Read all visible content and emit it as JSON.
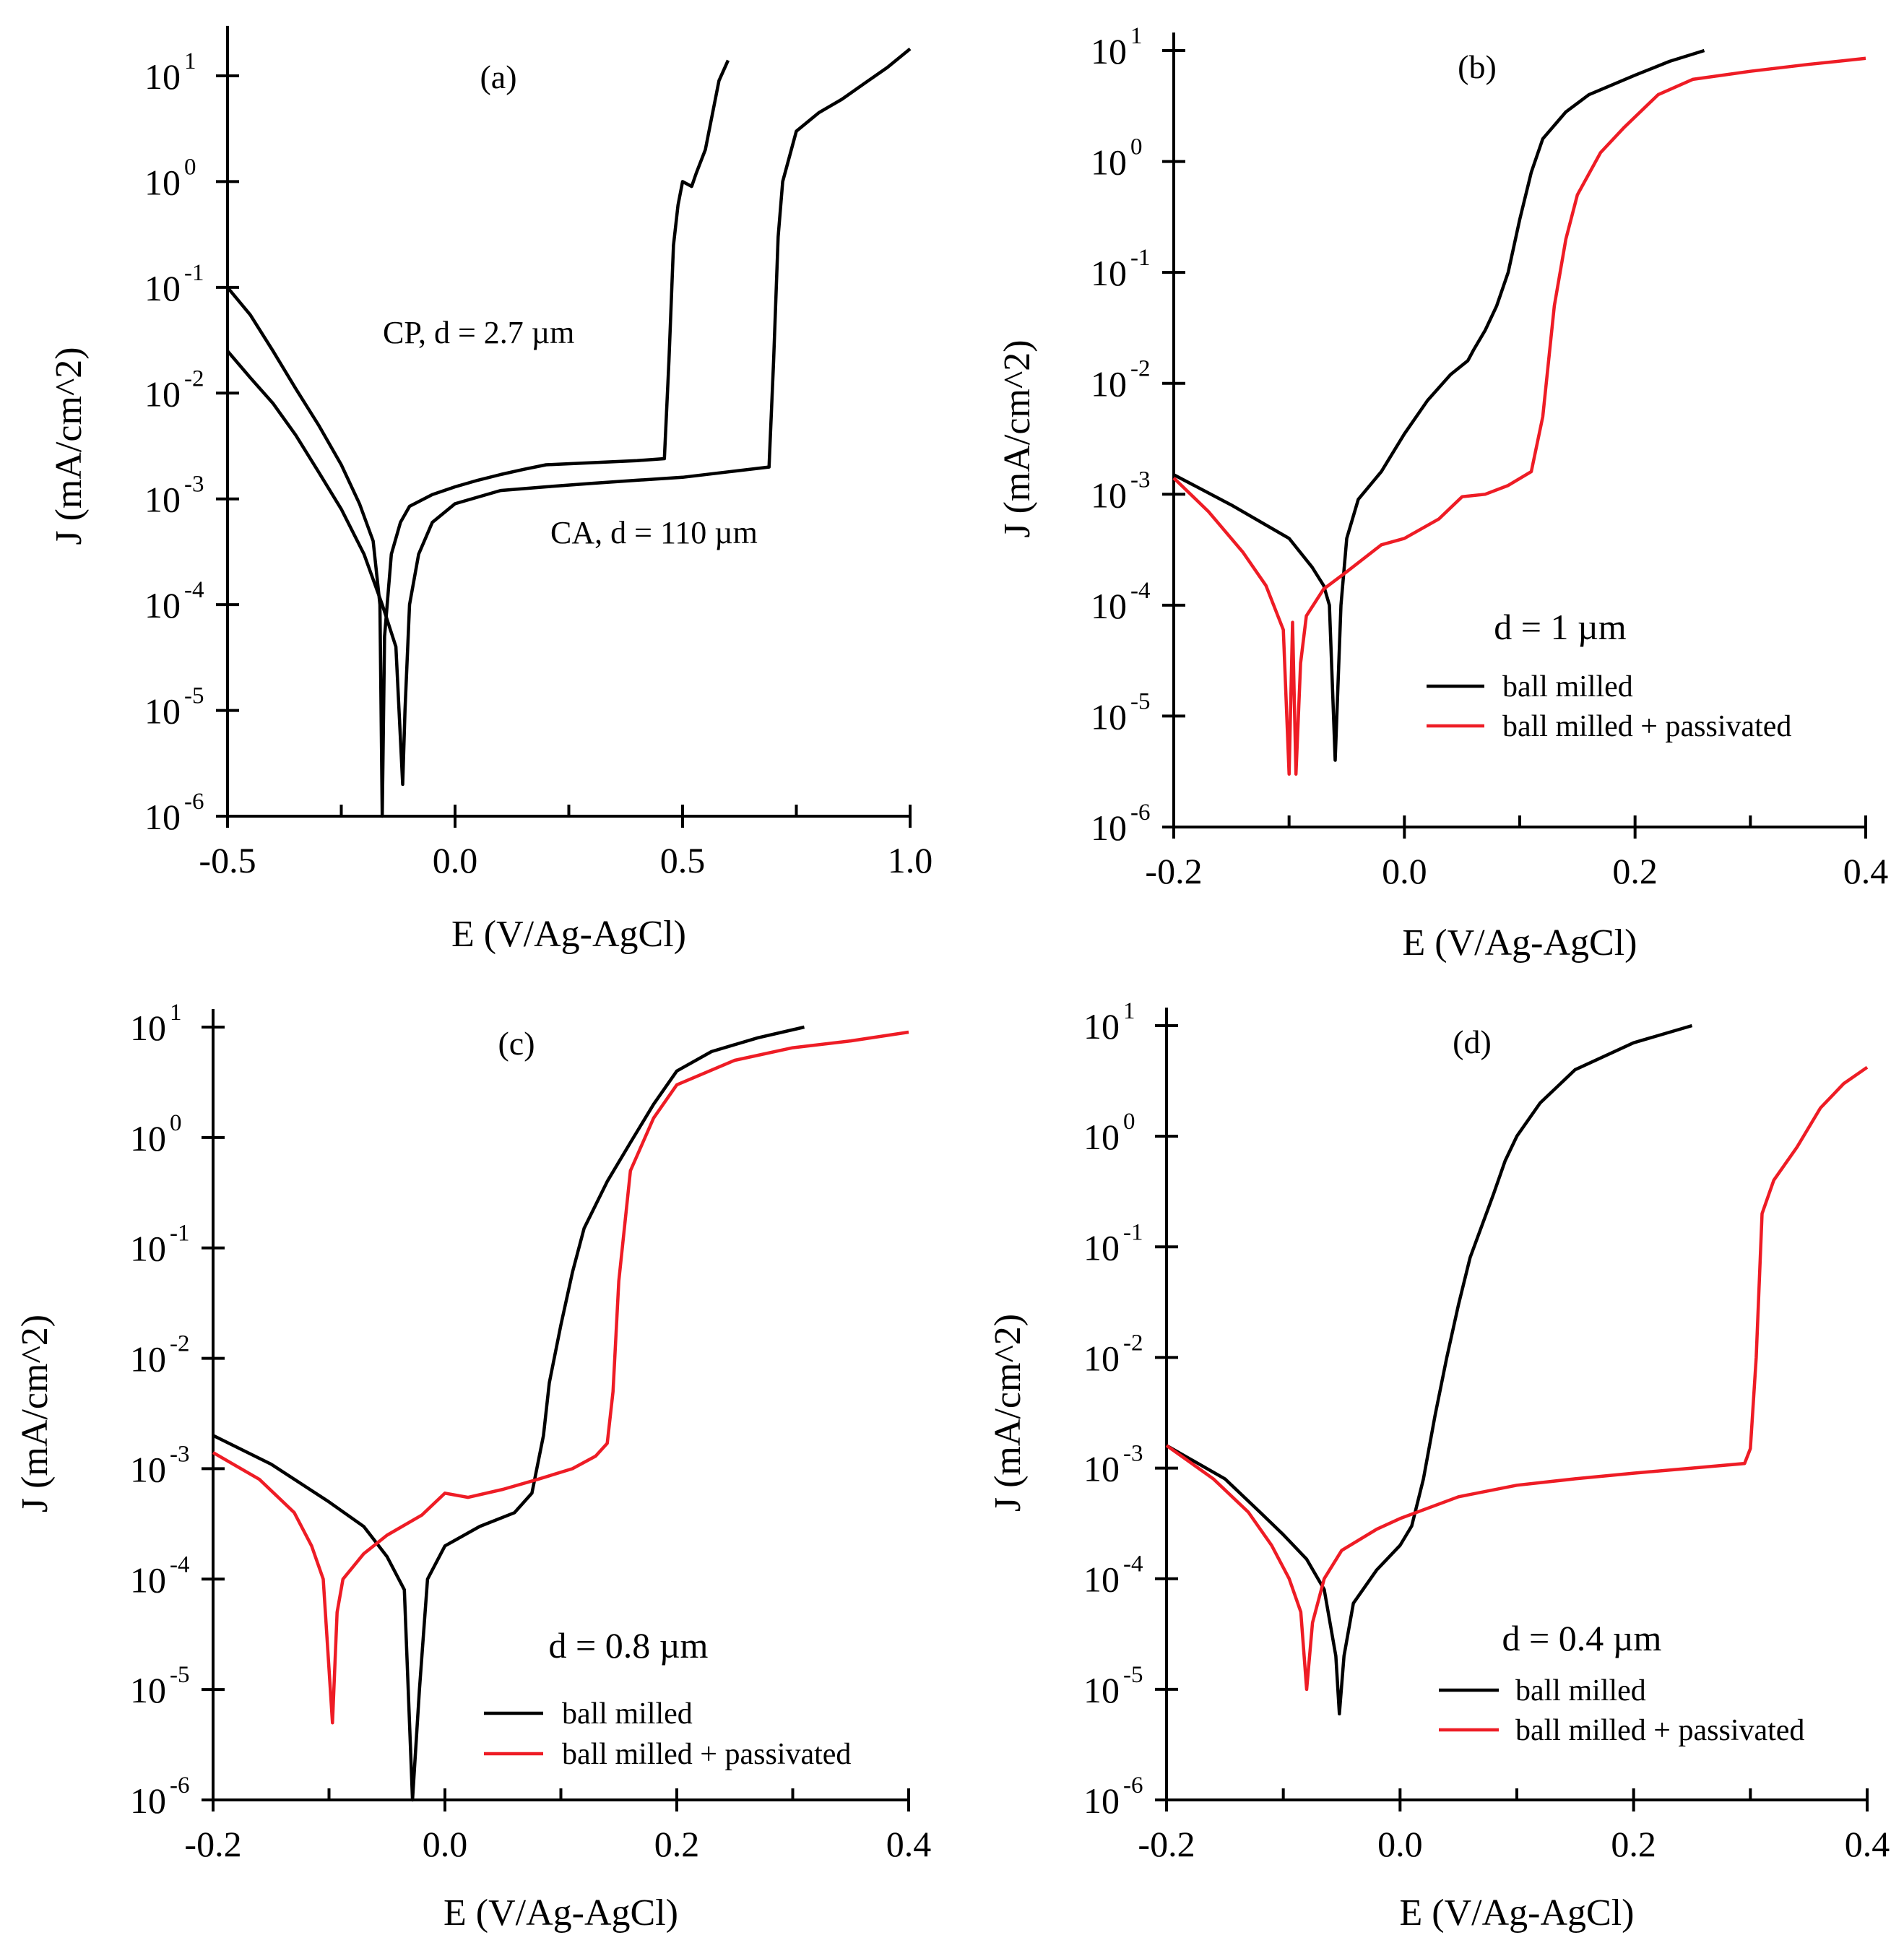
{
  "chart_data": [
    {
      "type": "line",
      "panel": "(a)",
      "xlabel": "E (V/Ag-AgCl)",
      "ylabel": "J (mA/cm^2)",
      "yscale": "log",
      "xlim": [
        -0.5,
        1.0
      ],
      "ylim": [
        1e-06,
        20
      ],
      "x_ticks": [
        -0.5,
        0.0,
        0.5,
        1.0
      ],
      "x_tick_labels": [
        "-0.5",
        "0.0",
        "0.5",
        "1.0"
      ],
      "y_exponents": [
        1,
        0,
        -1,
        -2,
        -3,
        -4,
        -5,
        -6
      ],
      "annotations": [
        "CP, d = 2.7 µm",
        "CA, d = 110 µm"
      ],
      "series": [
        {
          "name": "CP, d = 2.7 µm",
          "color": "#000000",
          "points": [
            [
              -0.5,
              0.1
            ],
            [
              -0.45,
              0.055
            ],
            [
              -0.4,
              0.025
            ],
            [
              -0.35,
              0.011
            ],
            [
              -0.3,
              0.005
            ],
            [
              -0.25,
              0.0021
            ],
            [
              -0.21,
              0.0009
            ],
            [
              -0.18,
              0.0004
            ],
            [
              -0.165,
              0.0001
            ],
            [
              -0.16,
              1e-06
            ],
            [
              -0.155,
              5e-05
            ],
            [
              -0.14,
              0.0003
            ],
            [
              -0.12,
              0.0006
            ],
            [
              -0.1,
              0.00085
            ],
            [
              -0.05,
              0.0011
            ],
            [
              0.0,
              0.0013
            ],
            [
              0.05,
              0.0015
            ],
            [
              0.1,
              0.0017
            ],
            [
              0.15,
              0.0019
            ],
            [
              0.2,
              0.0021
            ],
            [
              0.3,
              0.0022
            ],
            [
              0.4,
              0.0023
            ],
            [
              0.46,
              0.0024
            ],
            [
              0.47,
              0.02
            ],
            [
              0.48,
              0.25
            ],
            [
              0.49,
              0.6
            ],
            [
              0.5,
              1.0
            ],
            [
              0.52,
              0.9
            ],
            [
              0.53,
              1.2
            ],
            [
              0.55,
              2.0
            ],
            [
              0.58,
              9.0
            ],
            [
              0.6,
              14.0
            ]
          ]
        },
        {
          "name": "CA, d = 110 µm",
          "color": "#000000",
          "points": [
            [
              -0.5,
              0.025
            ],
            [
              -0.45,
              0.014
            ],
            [
              -0.4,
              0.008
            ],
            [
              -0.35,
              0.004
            ],
            [
              -0.3,
              0.0018
            ],
            [
              -0.25,
              0.0008
            ],
            [
              -0.2,
              0.0003
            ],
            [
              -0.16,
              0.0001
            ],
            [
              -0.13,
              4e-05
            ],
            [
              -0.115,
              2e-06
            ],
            [
              -0.11,
              1e-05
            ],
            [
              -0.1,
              0.0001
            ],
            [
              -0.08,
              0.0003
            ],
            [
              -0.05,
              0.0006
            ],
            [
              0.0,
              0.0009
            ],
            [
              0.1,
              0.0012
            ],
            [
              0.2,
              0.0013
            ],
            [
              0.3,
              0.0014
            ],
            [
              0.4,
              0.0015
            ],
            [
              0.5,
              0.0016
            ],
            [
              0.6,
              0.0018
            ],
            [
              0.69,
              0.002
            ],
            [
              0.7,
              0.02
            ],
            [
              0.71,
              0.3
            ],
            [
              0.72,
              1.0
            ],
            [
              0.75,
              3.0
            ],
            [
              0.8,
              4.5
            ],
            [
              0.85,
              6.0
            ],
            [
              0.9,
              8.5
            ],
            [
              0.95,
              12.0
            ],
            [
              1.0,
              18.0
            ]
          ]
        }
      ]
    },
    {
      "type": "line",
      "panel": "(b)",
      "xlabel": "E (V/Ag-AgCl)",
      "ylabel": "J (mA/cm^2)",
      "yscale": "log",
      "xlim": [
        -0.2,
        0.4
      ],
      "ylim": [
        1e-06,
        10
      ],
      "x_ticks": [
        -0.2,
        0.0,
        0.2,
        0.4
      ],
      "x_tick_labels": [
        "-0.2",
        "0.0",
        "0.2",
        "0.4"
      ],
      "y_exponents": [
        1,
        0,
        -1,
        -2,
        -3,
        -4,
        -5,
        -6
      ],
      "annotations": [
        "d = 1 µm"
      ],
      "legend": [
        "ball milled",
        "ball milled + passivated"
      ],
      "series": [
        {
          "name": "ball milled",
          "color": "#000000",
          "points": [
            [
              -0.2,
              0.0015
            ],
            [
              -0.15,
              0.0008
            ],
            [
              -0.1,
              0.0004
            ],
            [
              -0.08,
              0.00022
            ],
            [
              -0.07,
              0.00015
            ],
            [
              -0.065,
              0.0001
            ],
            [
              -0.06,
              4e-06
            ],
            [
              -0.055,
              0.0001
            ],
            [
              -0.05,
              0.0004
            ],
            [
              -0.04,
              0.0009
            ],
            [
              -0.02,
              0.0016
            ],
            [
              0.0,
              0.0035
            ],
            [
              0.02,
              0.007
            ],
            [
              0.04,
              0.012
            ],
            [
              0.055,
              0.016
            ],
            [
              0.06,
              0.02
            ],
            [
              0.07,
              0.03
            ],
            [
              0.08,
              0.05
            ],
            [
              0.09,
              0.1
            ],
            [
              0.1,
              0.3
            ],
            [
              0.11,
              0.8
            ],
            [
              0.12,
              1.6
            ],
            [
              0.14,
              2.8
            ],
            [
              0.16,
              4.0
            ],
            [
              0.2,
              6.0
            ],
            [
              0.23,
              8.0
            ],
            [
              0.26,
              10.0
            ]
          ]
        },
        {
          "name": "ball milled + passivated",
          "color": "#ee1c25",
          "points": [
            [
              -0.2,
              0.0014
            ],
            [
              -0.17,
              0.0007
            ],
            [
              -0.14,
              0.0003
            ],
            [
              -0.12,
              0.00015
            ],
            [
              -0.105,
              6e-05
            ],
            [
              -0.1,
              3e-06
            ],
            [
              -0.097,
              7e-05
            ],
            [
              -0.094,
              3e-06
            ],
            [
              -0.09,
              3e-05
            ],
            [
              -0.085,
              8e-05
            ],
            [
              -0.07,
              0.00014
            ],
            [
              -0.05,
              0.0002
            ],
            [
              -0.02,
              0.00035
            ],
            [
              0.0,
              0.0004
            ],
            [
              0.03,
              0.0006
            ],
            [
              0.05,
              0.00095
            ],
            [
              0.07,
              0.001
            ],
            [
              0.09,
              0.0012
            ],
            [
              0.11,
              0.0016
            ],
            [
              0.12,
              0.005
            ],
            [
              0.13,
              0.05
            ],
            [
              0.14,
              0.2
            ],
            [
              0.15,
              0.5
            ],
            [
              0.17,
              1.2
            ],
            [
              0.19,
              2.0
            ],
            [
              0.22,
              4.0
            ],
            [
              0.25,
              5.5
            ],
            [
              0.3,
              6.5
            ],
            [
              0.35,
              7.5
            ],
            [
              0.4,
              8.5
            ]
          ]
        }
      ]
    },
    {
      "type": "line",
      "panel": "(c)",
      "xlabel": "E (V/Ag-AgCl)",
      "ylabel": "J (mA/cm^2)",
      "yscale": "log",
      "xlim": [
        -0.2,
        0.4
      ],
      "ylim": [
        1e-06,
        10
      ],
      "x_ticks": [
        -0.2,
        0.0,
        0.2,
        0.4
      ],
      "x_tick_labels": [
        "-0.2",
        "0.0",
        "0.2",
        "0.4"
      ],
      "y_exponents": [
        1,
        0,
        -1,
        -2,
        -3,
        -4,
        -5,
        -6
      ],
      "annotations": [
        "d = 0.8 µm"
      ],
      "legend": [
        "ball milled",
        "ball milled + passivated"
      ],
      "series": [
        {
          "name": "ball milled",
          "color": "#000000",
          "points": [
            [
              -0.2,
              0.002
            ],
            [
              -0.15,
              0.0011
            ],
            [
              -0.1,
              0.0005
            ],
            [
              -0.07,
              0.0003
            ],
            [
              -0.05,
              0.00016
            ],
            [
              -0.035,
              8e-05
            ],
            [
              -0.028,
              1e-06
            ],
            [
              -0.022,
              1e-05
            ],
            [
              -0.015,
              0.0001
            ],
            [
              0.0,
              0.0002
            ],
            [
              0.03,
              0.0003
            ],
            [
              0.06,
              0.0004
            ],
            [
              0.075,
              0.0006
            ],
            [
              0.085,
              0.002
            ],
            [
              0.09,
              0.006
            ],
            [
              0.1,
              0.02
            ],
            [
              0.11,
              0.06
            ],
            [
              0.12,
              0.15
            ],
            [
              0.14,
              0.4
            ],
            [
              0.16,
              0.9
            ],
            [
              0.18,
              2.0
            ],
            [
              0.2,
              4.0
            ],
            [
              0.23,
              6.0
            ],
            [
              0.27,
              8.0
            ],
            [
              0.31,
              10.0
            ]
          ]
        },
        {
          "name": "ball milled + passivated",
          "color": "#ee1c25",
          "points": [
            [
              -0.2,
              0.0014
            ],
            [
              -0.16,
              0.0008
            ],
            [
              -0.13,
              0.0004
            ],
            [
              -0.115,
              0.0002
            ],
            [
              -0.105,
              0.0001
            ],
            [
              -0.097,
              5e-06
            ],
            [
              -0.093,
              5e-05
            ],
            [
              -0.088,
              0.0001
            ],
            [
              -0.07,
              0.00017
            ],
            [
              -0.05,
              0.00025
            ],
            [
              -0.02,
              0.00038
            ],
            [
              0.0,
              0.0006
            ],
            [
              0.02,
              0.00055
            ],
            [
              0.05,
              0.00065
            ],
            [
              0.08,
              0.0008
            ],
            [
              0.11,
              0.001
            ],
            [
              0.13,
              0.0013
            ],
            [
              0.14,
              0.0017
            ],
            [
              0.145,
              0.005
            ],
            [
              0.15,
              0.05
            ],
            [
              0.16,
              0.5
            ],
            [
              0.18,
              1.5
            ],
            [
              0.2,
              3.0
            ],
            [
              0.25,
              5.0
            ],
            [
              0.3,
              6.5
            ],
            [
              0.35,
              7.5
            ],
            [
              0.4,
              9.0
            ]
          ]
        }
      ]
    },
    {
      "type": "line",
      "panel": "(d)",
      "xlabel": "E (V/Ag-AgCl)",
      "ylabel": "J (mA/cm^2)",
      "yscale": "log",
      "xlim": [
        -0.2,
        0.4
      ],
      "ylim": [
        1e-06,
        10
      ],
      "x_ticks": [
        -0.2,
        0.0,
        0.2,
        0.4
      ],
      "x_tick_labels": [
        "-0.2",
        "0.0",
        "0.2",
        "0.4"
      ],
      "y_exponents": [
        1,
        0,
        -1,
        -2,
        -3,
        -4,
        -5,
        -6
      ],
      "annotations": [
        "d = 0.4 µm"
      ],
      "legend": [
        "ball milled",
        "ball milled + passivated"
      ],
      "series": [
        {
          "name": "ball milled",
          "color": "#000000",
          "points": [
            [
              -0.2,
              0.0016
            ],
            [
              -0.15,
              0.0008
            ],
            [
              -0.12,
              0.0004
            ],
            [
              -0.1,
              0.00025
            ],
            [
              -0.08,
              0.00015
            ],
            [
              -0.065,
              8e-05
            ],
            [
              -0.055,
              2e-05
            ],
            [
              -0.052,
              6e-06
            ],
            [
              -0.048,
              2e-05
            ],
            [
              -0.04,
              6e-05
            ],
            [
              -0.02,
              0.00012
            ],
            [
              0.0,
              0.0002
            ],
            [
              0.01,
              0.0003
            ],
            [
              0.02,
              0.0008
            ],
            [
              0.03,
              0.003
            ],
            [
              0.04,
              0.01
            ],
            [
              0.05,
              0.03
            ],
            [
              0.06,
              0.08
            ],
            [
              0.08,
              0.3
            ],
            [
              0.09,
              0.6
            ],
            [
              0.1,
              1.0
            ],
            [
              0.12,
              2.0
            ],
            [
              0.15,
              4.0
            ],
            [
              0.2,
              7.0
            ],
            [
              0.25,
              10.0
            ]
          ]
        },
        {
          "name": "ball milled + passivated",
          "color": "#ee1c25",
          "points": [
            [
              -0.2,
              0.0016
            ],
            [
              -0.16,
              0.0008
            ],
            [
              -0.13,
              0.0004
            ],
            [
              -0.11,
              0.0002
            ],
            [
              -0.095,
              0.0001
            ],
            [
              -0.085,
              5e-05
            ],
            [
              -0.08,
              1e-05
            ],
            [
              -0.075,
              4e-05
            ],
            [
              -0.065,
              0.0001
            ],
            [
              -0.05,
              0.00018
            ],
            [
              -0.02,
              0.00028
            ],
            [
              0.0,
              0.00035
            ],
            [
              0.05,
              0.00055
            ],
            [
              0.1,
              0.0007
            ],
            [
              0.15,
              0.0008
            ],
            [
              0.2,
              0.0009
            ],
            [
              0.25,
              0.001
            ],
            [
              0.295,
              0.0011
            ],
            [
              0.3,
              0.0015
            ],
            [
              0.305,
              0.01
            ],
            [
              0.31,
              0.2
            ],
            [
              0.32,
              0.4
            ],
            [
              0.34,
              0.8
            ],
            [
              0.36,
              1.8
            ],
            [
              0.38,
              3.0
            ],
            [
              0.4,
              4.2
            ]
          ]
        }
      ]
    }
  ]
}
